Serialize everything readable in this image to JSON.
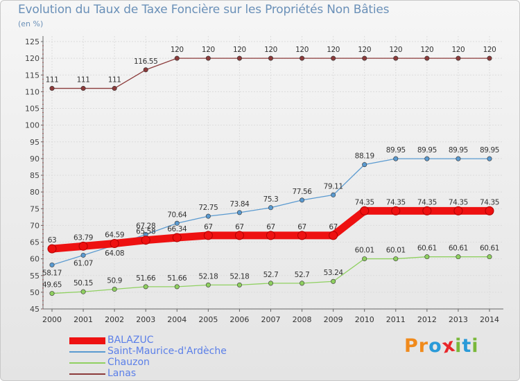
{
  "header": {
    "title": "Evolution du Taux de Taxe Foncière sur les Propriétés Non Bâties",
    "subtitle": "(en %)"
  },
  "brand": {
    "letters": [
      "P",
      "r",
      "o",
      "x",
      "i",
      "t",
      "i"
    ],
    "colors": [
      "#f08a1c",
      "#f08a1c",
      "#2a9ad8",
      "#e8262a",
      "#7ab83a",
      "#2a9ad8",
      "#7ab83a"
    ]
  },
  "chart_data": {
    "type": "line",
    "title": "Evolution du Taux de Taxe Foncière sur les Propriétés Non Bâties",
    "ylabel": "(en %)",
    "x": [
      "2000",
      "2001",
      "2002",
      "2003",
      "2004",
      "2005",
      "2006",
      "2007",
      "2008",
      "2009",
      "2010",
      "2011",
      "2012",
      "2013",
      "2014"
    ],
    "ylim": [
      45,
      125
    ],
    "yticks": [
      45,
      50,
      55,
      60,
      65,
      70,
      75,
      80,
      85,
      90,
      95,
      100,
      105,
      110,
      115,
      120,
      125
    ],
    "grid": true,
    "legend_position": "bottom-left",
    "series": [
      {
        "name": "Lanas",
        "color": "#8b3a3a",
        "values": [
          111,
          111,
          111,
          116.55,
          120,
          120,
          120,
          120,
          120,
          120,
          120,
          120,
          120,
          120,
          120
        ],
        "labels": [
          "111",
          "111",
          "111",
          "116.55",
          "120",
          "120",
          "120",
          "120",
          "120",
          "120",
          "120",
          "120",
          "120",
          "120",
          "120"
        ]
      },
      {
        "name": "Saint-Maurice-d'Ardèche",
        "color": "#5a9ad0",
        "values": [
          58.17,
          61.07,
          64.08,
          67.28,
          70.64,
          72.75,
          73.84,
          75.3,
          77.56,
          79.11,
          88.19,
          89.95,
          89.95,
          89.95,
          89.95
        ],
        "labels": [
          "58.17",
          "61.07",
          "64.08",
          "67.28",
          "70.64",
          "72.75",
          "73.84",
          "75.3",
          "77.56",
          "79.11",
          "88.19",
          "89.95",
          "89.95",
          "89.95",
          "89.95"
        ]
      },
      {
        "name": "Chauzon",
        "color": "#8fd060",
        "values": [
          49.65,
          50.15,
          50.9,
          51.66,
          51.66,
          52.18,
          52.18,
          52.7,
          52.7,
          53.24,
          60.01,
          60.01,
          60.61,
          60.61,
          60.61
        ],
        "labels": [
          "49.65",
          "50.15",
          "50.9",
          "51.66",
          "51.66",
          "52.18",
          "52.18",
          "52.7",
          "52.7",
          "53.24",
          "60.01",
          "60.01",
          "60.61",
          "60.61",
          "60.61"
        ]
      },
      {
        "name": "BALAZUC",
        "color": "#ee1111",
        "values": [
          63,
          63.79,
          64.59,
          65.58,
          66.34,
          67,
          67,
          67,
          67,
          67,
          74.35,
          74.35,
          74.35,
          74.35,
          74.35
        ],
        "labels": [
          "63",
          "63.79",
          "64.59",
          "65.58",
          "66.34",
          "67",
          "67",
          "67",
          "67",
          "67",
          "74.35",
          "74.35",
          "74.35",
          "74.35",
          "74.35"
        ]
      }
    ],
    "legend_order": [
      "BALAZUC",
      "Saint-Maurice-d'Ardèche",
      "Chauzon",
      "Lanas"
    ]
  }
}
